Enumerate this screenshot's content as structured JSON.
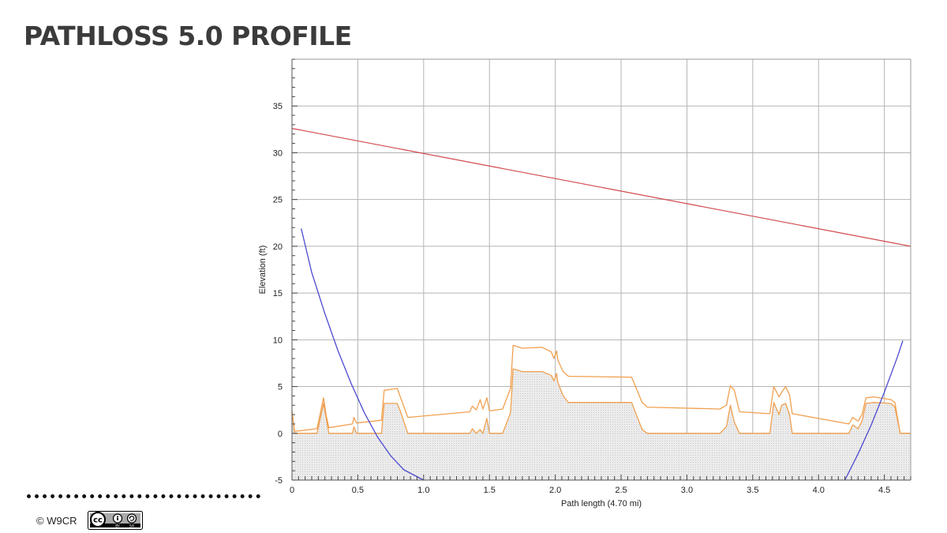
{
  "slide": {
    "title": "PATHLOSS 5.0 PROFILE",
    "copyright": "© W9CR",
    "license_badge": {
      "text": "cc",
      "sub_left": "BY",
      "sub_right": "SA"
    }
  },
  "chart_data": {
    "type": "line",
    "title": "",
    "xlabel": "Path length (4.70 mi)",
    "ylabel": "Elevation (ft)",
    "xlim": [
      0,
      4.7
    ],
    "ylim": [
      -5,
      40
    ],
    "x_ticks": [
      0,
      0.5,
      1.0,
      1.5,
      2.0,
      2.5,
      3.0,
      3.5,
      4.0,
      4.5
    ],
    "x_tick_labels": [
      "0",
      "0.5",
      "1.0",
      "1.5",
      "2.0",
      "2.5",
      "3.0",
      "3.5",
      "4.0",
      "4.5"
    ],
    "y_ticks": [
      -5,
      0,
      5,
      10,
      15,
      20,
      25,
      30,
      35
    ],
    "y_tick_labels": [
      "-5",
      "0",
      "5",
      "10",
      "15",
      "20",
      "25",
      "30",
      "35"
    ],
    "grid": true,
    "legend": "none",
    "colors": {
      "line_of_sight": "#d0474b",
      "earth_curve": "#4a4ad0",
      "terrain_line": "#f0a050",
      "terrain_fill": "#e6e6e6",
      "grid": "#b4b4b4"
    },
    "series": [
      {
        "x": [
          0,
          4.7
        ],
        "y": [
          32.6,
          20.0
        ]
      },
      {
        "x": [
          0.07,
          0.15,
          0.25,
          0.35,
          0.45,
          0.55,
          0.65,
          0.75,
          0.85,
          1.0
        ],
        "y": [
          21.9,
          17.2,
          12.8,
          8.8,
          5.3,
          2.2,
          -0.4,
          -2.4,
          -3.9,
          -5.0
        ]
      },
      {
        "x": [
          4.2,
          4.3,
          4.4,
          4.5,
          4.6,
          4.64
        ],
        "y": [
          -5.0,
          -2.2,
          0.9,
          4.4,
          8.2,
          9.9
        ]
      },
      {
        "x": [
          0,
          0.02,
          0.19,
          0.24,
          0.26,
          0.28,
          0.46,
          0.47,
          0.49,
          0.68,
          0.7,
          0.8,
          0.83,
          0.88,
          1.35,
          1.37,
          1.4,
          1.43,
          1.45,
          1.48,
          1.5,
          1.6,
          1.66,
          1.68,
          1.75,
          1.9,
          1.97,
          1.99,
          2.01,
          2.02,
          2.06,
          2.1,
          2.58,
          2.66,
          2.7,
          3.25,
          3.3,
          3.33,
          3.36,
          3.4,
          3.63,
          3.66,
          3.7,
          3.72,
          3.75,
          3.78,
          3.8,
          4.23,
          4.26,
          4.3,
          4.33,
          4.36,
          4.42,
          4.55,
          4.58,
          4.62,
          4.7
        ],
        "y": [
          2.4,
          0.0,
          0.0,
          3.2,
          1.6,
          0.0,
          0.0,
          0.7,
          0.0,
          0.0,
          3.2,
          3.2,
          2.1,
          0.0,
          0.0,
          0.5,
          0.0,
          0.4,
          0.0,
          1.6,
          0.0,
          0.0,
          2.2,
          6.9,
          6.6,
          6.6,
          6.2,
          5.6,
          6.4,
          5.4,
          4.0,
          3.3,
          3.3,
          0.4,
          0.0,
          0.0,
          0.7,
          3.0,
          1.2,
          0.0,
          0.0,
          3.3,
          2.0,
          3.0,
          3.2,
          2.0,
          0.0,
          0.0,
          0.9,
          0.5,
          1.3,
          3.2,
          3.3,
          3.2,
          2.8,
          0.0,
          0.0
        ]
      },
      {
        "x": [
          0,
          0.02,
          0.19,
          0.24,
          0.26,
          0.28,
          0.46,
          0.47,
          0.49,
          0.68,
          0.7,
          0.8,
          0.83,
          0.88,
          1.35,
          1.37,
          1.4,
          1.43,
          1.45,
          1.48,
          1.5,
          1.6,
          1.66,
          1.68,
          1.75,
          1.9,
          1.97,
          1.99,
          2.01,
          2.02,
          2.06,
          2.1,
          2.58,
          2.66,
          2.7,
          3.25,
          3.3,
          3.33,
          3.36,
          3.4,
          3.63,
          3.66,
          3.7,
          3.72,
          3.75,
          3.78,
          3.8,
          4.23,
          4.26,
          4.3,
          4.33,
          4.36,
          4.42,
          4.55,
          4.58,
          4.62,
          4.7
        ],
        "y": [
          2.4,
          0.2,
          0.5,
          3.8,
          1.9,
          0.6,
          1.0,
          1.7,
          1.1,
          1.4,
          4.6,
          4.8,
          3.6,
          1.7,
          2.3,
          2.9,
          2.5,
          3.6,
          2.6,
          3.8,
          2.4,
          2.6,
          4.8,
          9.4,
          9.1,
          9.2,
          8.7,
          8.0,
          8.8,
          7.8,
          6.6,
          6.1,
          6.0,
          3.3,
          2.8,
          2.6,
          3.0,
          5.1,
          4.6,
          2.3,
          2.1,
          5.0,
          3.9,
          4.4,
          5.0,
          4.1,
          2.1,
          1.0,
          1.7,
          1.3,
          2.0,
          3.8,
          3.9,
          3.6,
          3.3,
          0.0,
          0.0
        ]
      }
    ]
  }
}
